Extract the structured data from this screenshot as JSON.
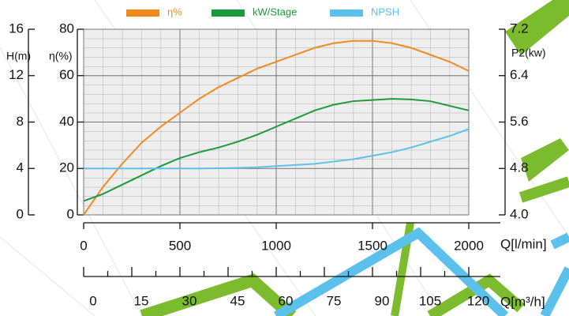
{
  "chart_data": {
    "type": "line",
    "legend": "top",
    "grid": true,
    "xlabel": "Q[l/min]",
    "x2label": "Q[m³/h]",
    "ylabel": "η(%)",
    "y2label": "P2(kw)",
    "y3label": "H(m)",
    "x": [
      0,
      100,
      200,
      300,
      400,
      500,
      600,
      700,
      800,
      900,
      1000,
      1100,
      1200,
      1300,
      1400,
      1500,
      1600,
      1700,
      1800,
      1900,
      2000
    ],
    "xlim": [
      0,
      2000
    ],
    "xticks": [
      0,
      500,
      1000,
      1500,
      2000
    ],
    "x2lim": [
      0,
      120
    ],
    "x2ticks": [
      0,
      15,
      30,
      45,
      60,
      75,
      90,
      105,
      120
    ],
    "ylim": [
      0,
      80
    ],
    "yticks": [
      0,
      20,
      40,
      60,
      80
    ],
    "y2lim": [
      4,
      7.2
    ],
    "y2ticks": [
      {
        "value": 4,
        "label": "4.0"
      },
      4.8,
      5.6,
      6.4,
      7.2
    ],
    "y3lim": [
      0,
      16
    ],
    "y3ticks": [
      0,
      4,
      8,
      12,
      16
    ],
    "series": [
      {
        "name": "η%",
        "color": "#f08a1f",
        "axis": "y",
        "values": [
          0,
          12,
          22,
          31,
          38,
          44,
          50,
          55,
          59,
          63,
          66,
          69,
          72,
          74,
          75,
          75,
          74,
          72,
          69,
          66,
          62
        ]
      },
      {
        "name": "kW/Stage",
        "color": "#1a9a3a",
        "axis": "y2",
        "values": [
          4.24,
          4.36,
          4.52,
          4.68,
          4.84,
          4.98,
          5.08,
          5.16,
          5.26,
          5.38,
          5.52,
          5.66,
          5.8,
          5.9,
          5.96,
          5.98,
          6.0,
          5.99,
          5.96,
          5.88,
          5.8
        ]
      },
      {
        "name": "NPSH",
        "color": "#5bc0eb",
        "axis": "y3",
        "values": [
          4,
          4,
          4,
          4,
          4,
          4,
          4,
          4.02,
          4.05,
          4.1,
          4.2,
          4.3,
          4.4,
          4.6,
          4.8,
          5.1,
          5.4,
          5.8,
          6.3,
          6.8,
          7.4
        ]
      }
    ]
  }
}
